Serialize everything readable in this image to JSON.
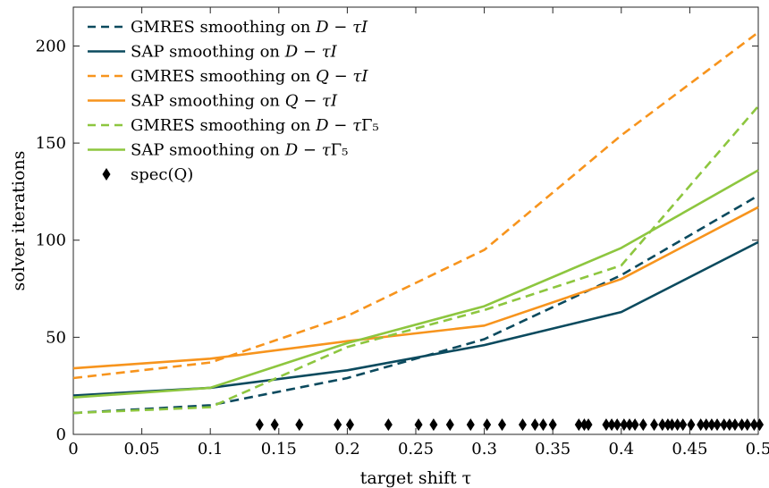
{
  "chart_data": {
    "type": "line",
    "xlabel": "target shift τ",
    "ylabel": "solver iterations",
    "xlim": [
      0,
      0.5
    ],
    "ylim": [
      0,
      220
    ],
    "xticks": [
      0,
      0.05,
      0.1,
      0.15,
      0.2,
      0.25,
      0.3,
      0.35,
      0.4,
      0.45,
      0.5
    ],
    "xtick_labels": [
      "0",
      "0.05",
      "0.1",
      "0.15",
      "0.2",
      "0.25",
      "0.3",
      "0.35",
      "0.4",
      "0.45",
      "0.5"
    ],
    "yticks": [
      0,
      50,
      100,
      150,
      200
    ],
    "ytick_labels": [
      "0",
      "50",
      "100",
      "150",
      "200"
    ],
    "grid": false,
    "legend_position": "top-left",
    "x": [
      0,
      0.1,
      0.2,
      0.3,
      0.4,
      0.5
    ],
    "series": [
      {
        "name": "GMRES smoothing on D − τI",
        "name_parts": [
          "GMRES smoothing on ",
          "D",
          " − ",
          "τI",
          ""
        ],
        "color": "#0b4a5e",
        "dash": true,
        "values": [
          11,
          15,
          29,
          49,
          82,
          123
        ]
      },
      {
        "name": "SAP smoothing on D − τI",
        "name_parts": [
          "SAP smoothing on ",
          "D",
          " − ",
          "τI",
          ""
        ],
        "color": "#0b4a5e",
        "dash": false,
        "values": [
          20,
          24,
          33,
          46,
          63,
          99
        ]
      },
      {
        "name": "GMRES smoothing on Q − τI",
        "name_parts": [
          "GMRES smoothing on ",
          "Q",
          " − ",
          "τI",
          ""
        ],
        "color": "#f7941d",
        "dash": true,
        "values": [
          29,
          37,
          61,
          95,
          154,
          207
        ]
      },
      {
        "name": "SAP smoothing on Q − τI",
        "name_parts": [
          "SAP smoothing on ",
          "Q",
          " − ",
          "τI",
          ""
        ],
        "color": "#f7941d",
        "dash": false,
        "values": [
          34,
          39,
          48,
          56,
          80,
          117
        ]
      },
      {
        "name": "GMRES smoothing on D − τΓ5",
        "name_parts": [
          "GMRES smoothing on ",
          "D",
          " − ",
          "τ",
          "Γ₅"
        ],
        "color": "#8dc63f",
        "dash": true,
        "values": [
          11,
          14,
          45,
          64,
          87,
          169
        ]
      },
      {
        "name": "SAP smoothing on D − τΓ5",
        "name_parts": [
          "SAP smoothing on ",
          "D",
          " − ",
          "τ",
          "Γ₅"
        ],
        "color": "#8dc63f",
        "dash": false,
        "values": [
          19,
          24,
          47,
          66,
          96,
          136
        ]
      }
    ],
    "scatter": {
      "name": "spec(Q)",
      "color": "#000000",
      "y": 5,
      "x": [
        0.136,
        0.147,
        0.165,
        0.193,
        0.202,
        0.23,
        0.252,
        0.263,
        0.275,
        0.29,
        0.302,
        0.313,
        0.328,
        0.337,
        0.343,
        0.35,
        0.369,
        0.373,
        0.376,
        0.389,
        0.393,
        0.397,
        0.402,
        0.406,
        0.41,
        0.416,
        0.424,
        0.43,
        0.434,
        0.437,
        0.441,
        0.445,
        0.451,
        0.458,
        0.462,
        0.466,
        0.47,
        0.475,
        0.479,
        0.483,
        0.488,
        0.492,
        0.497,
        0.501
      ]
    }
  }
}
